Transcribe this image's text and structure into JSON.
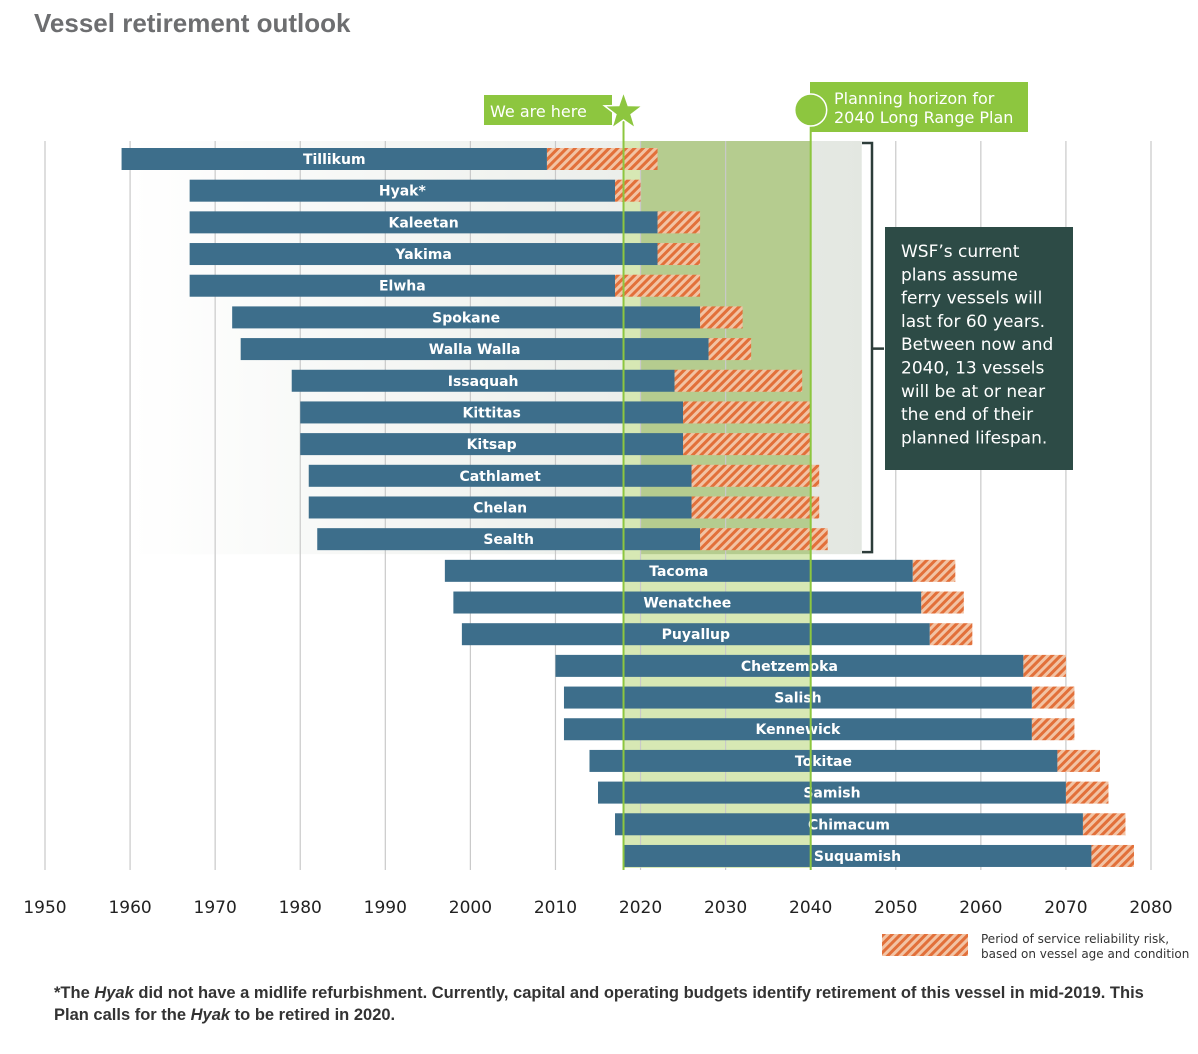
{
  "title": "Vessel retirement outlook",
  "chart_data": {
    "type": "bar",
    "subtype": "gantt-horizontal",
    "xlim": [
      1950,
      2080
    ],
    "x_ticks": [
      1950,
      1960,
      1970,
      1980,
      1990,
      2000,
      2010,
      2020,
      2030,
      2040,
      2050,
      2060,
      2070,
      2080
    ],
    "grid": "vertical",
    "colors": {
      "service": "#3d6e8b",
      "risk": "#e2703a",
      "highlight": "#8dc63f",
      "note_box": "#2d4b46"
    },
    "vessels": [
      {
        "name": "Tillikum",
        "start": 1959,
        "risk_start": 2009,
        "end": 2022
      },
      {
        "name": "Hyak*",
        "start": 1967,
        "risk_start": 2017,
        "end": 2020
      },
      {
        "name": "Kaleetan",
        "start": 1967,
        "risk_start": 2022,
        "end": 2027
      },
      {
        "name": "Yakima",
        "start": 1967,
        "risk_start": 2022,
        "end": 2027
      },
      {
        "name": "Elwha",
        "start": 1967,
        "risk_start": 2017,
        "end": 2027
      },
      {
        "name": "Spokane",
        "start": 1972,
        "risk_start": 2027,
        "end": 2032
      },
      {
        "name": "Walla Walla",
        "start": 1973,
        "risk_start": 2028,
        "end": 2033
      },
      {
        "name": "Issaquah",
        "start": 1979,
        "risk_start": 2024,
        "end": 2039
      },
      {
        "name": "Kittitas",
        "start": 1980,
        "risk_start": 2025,
        "end": 2040
      },
      {
        "name": "Kitsap",
        "start": 1980,
        "risk_start": 2025,
        "end": 2040
      },
      {
        "name": "Cathlamet",
        "start": 1981,
        "risk_start": 2026,
        "end": 2041
      },
      {
        "name": "Chelan",
        "start": 1981,
        "risk_start": 2026,
        "end": 2041
      },
      {
        "name": "Sealth",
        "start": 1982,
        "risk_start": 2027,
        "end": 2042
      },
      {
        "name": "Tacoma",
        "start": 1997,
        "risk_start": 2052,
        "end": 2057
      },
      {
        "name": "Wenatchee",
        "start": 1998,
        "risk_start": 2053,
        "end": 2058
      },
      {
        "name": "Puyallup",
        "start": 1999,
        "risk_start": 2054,
        "end": 2059
      },
      {
        "name": "Chetzemoka",
        "start": 2010,
        "risk_start": 2065,
        "end": 2070
      },
      {
        "name": "Salish",
        "start": 2011,
        "risk_start": 2066,
        "end": 2071
      },
      {
        "name": "Kennewick",
        "start": 2011,
        "risk_start": 2066,
        "end": 2071
      },
      {
        "name": "Tokitae",
        "start": 2014,
        "risk_start": 2069,
        "end": 2074
      },
      {
        "name": "Samish",
        "start": 2015,
        "risk_start": 2070,
        "end": 2075
      },
      {
        "name": "Chimacum",
        "start": 2017,
        "risk_start": 2072,
        "end": 2077
      },
      {
        "name": "Suquamish",
        "start": 2018,
        "risk_start": 2073,
        "end": 2078
      }
    ],
    "markers": {
      "now": {
        "year": 2018,
        "label": "We are here"
      },
      "horizon": {
        "year": 2040,
        "label_lines": [
          "Planning horizon for",
          "2040 Long Range Plan"
        ]
      }
    },
    "annotation_lines": [
      "WSF’s current",
      "plans assume",
      "ferry vessels will",
      "last for 60 years.",
      "Between now and",
      "2040, 13 vessels",
      "will be at or near",
      "the end of their",
      "planned lifespan."
    ],
    "legend": {
      "lines": [
        "Period of service reliability risk,",
        "based on vessel age and condition"
      ],
      "placement": "bottom-right"
    }
  },
  "footnote": {
    "p1": "*The ",
    "hyak1": "Hyak",
    "p2": " did not have a midlife refurbishment. Currently, capital and operating budgets identify retirement of this vessel in mid-2019. This Plan calls for the ",
    "hyak2": "Hyak",
    "p3": " to be retired in 2020."
  }
}
